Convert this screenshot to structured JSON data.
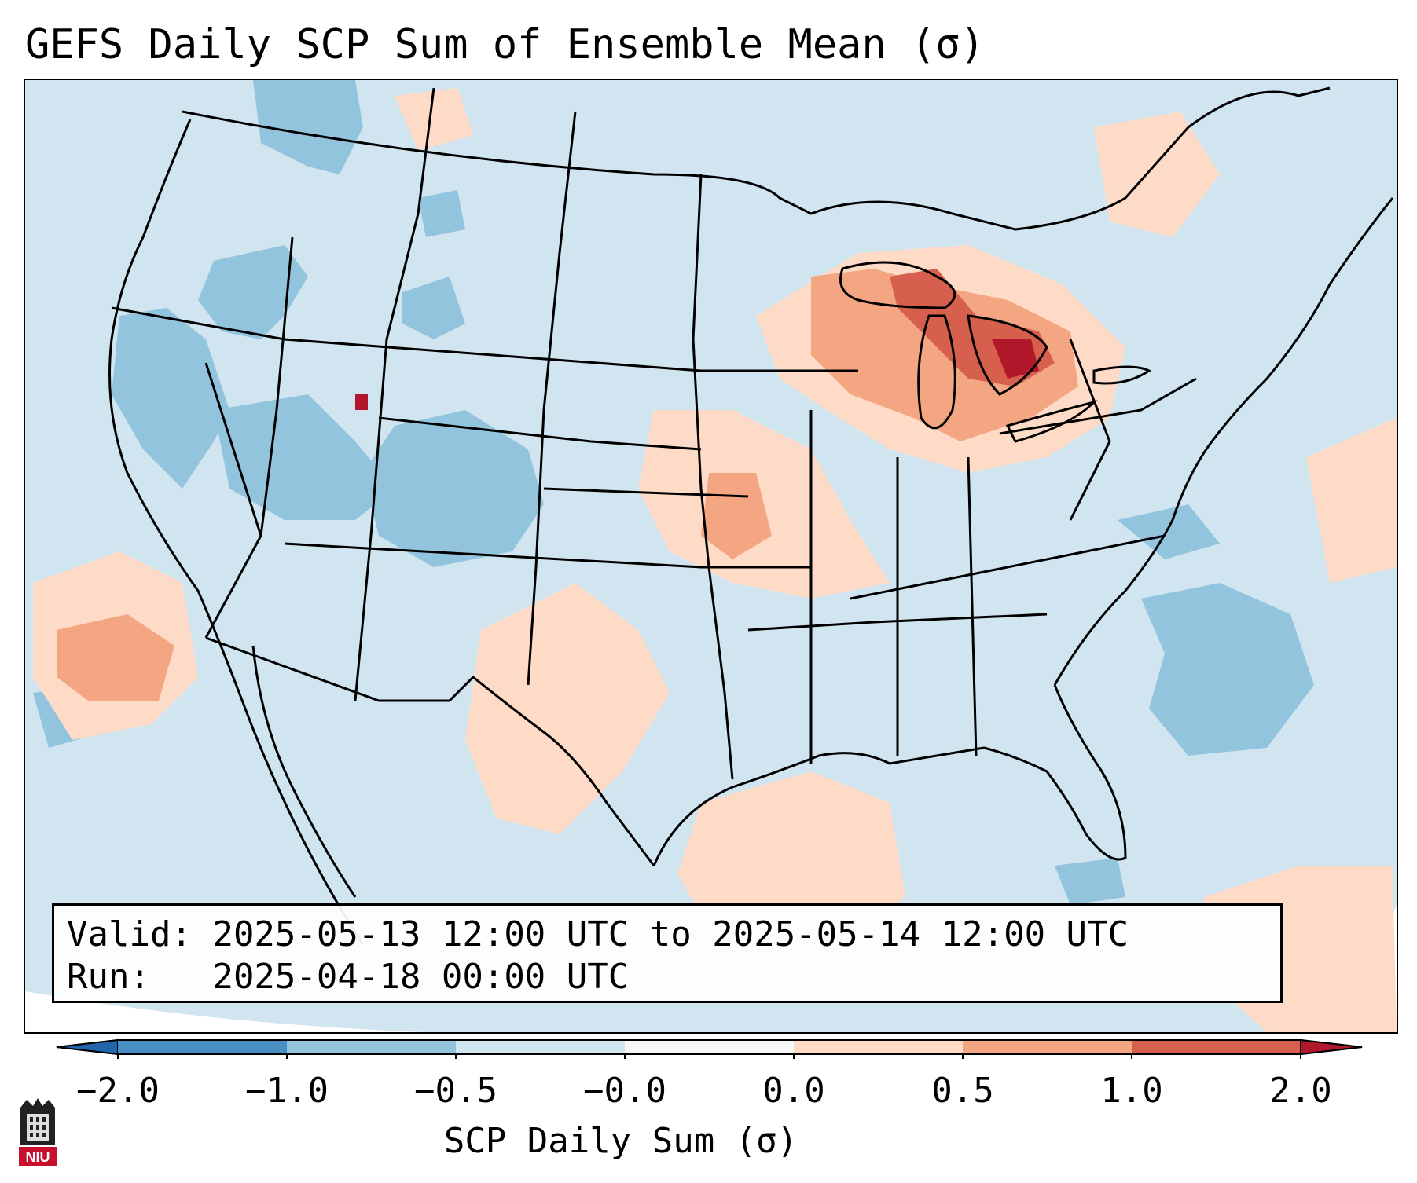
{
  "title": "GEFS Daily SCP Sum of Ensemble Mean (σ)",
  "info": {
    "valid_label": "Valid:",
    "valid_value": "2025-05-13 12:00 UTC to 2025-05-14 12:00 UTC",
    "run_label": "Run:",
    "run_value": "2025-04-18 00:00 UTC"
  },
  "colorbar": {
    "label": "SCP Daily Sum (σ)",
    "ticks": [
      "−2.0",
      "−1.0",
      "−0.5",
      "−0.0",
      "0.0",
      "0.5",
      "1.0",
      "2.0"
    ],
    "colors": [
      "#4a8fc4",
      "#92c4de",
      "#d1e5f0",
      "#f7f7f7",
      "#fddbc7",
      "#f4a582",
      "#d6604d"
    ],
    "under_color": "#2166ac",
    "over_color": "#b2182b"
  },
  "logo": {
    "text": "NIU",
    "icon": "niu-logo-icon"
  }
}
